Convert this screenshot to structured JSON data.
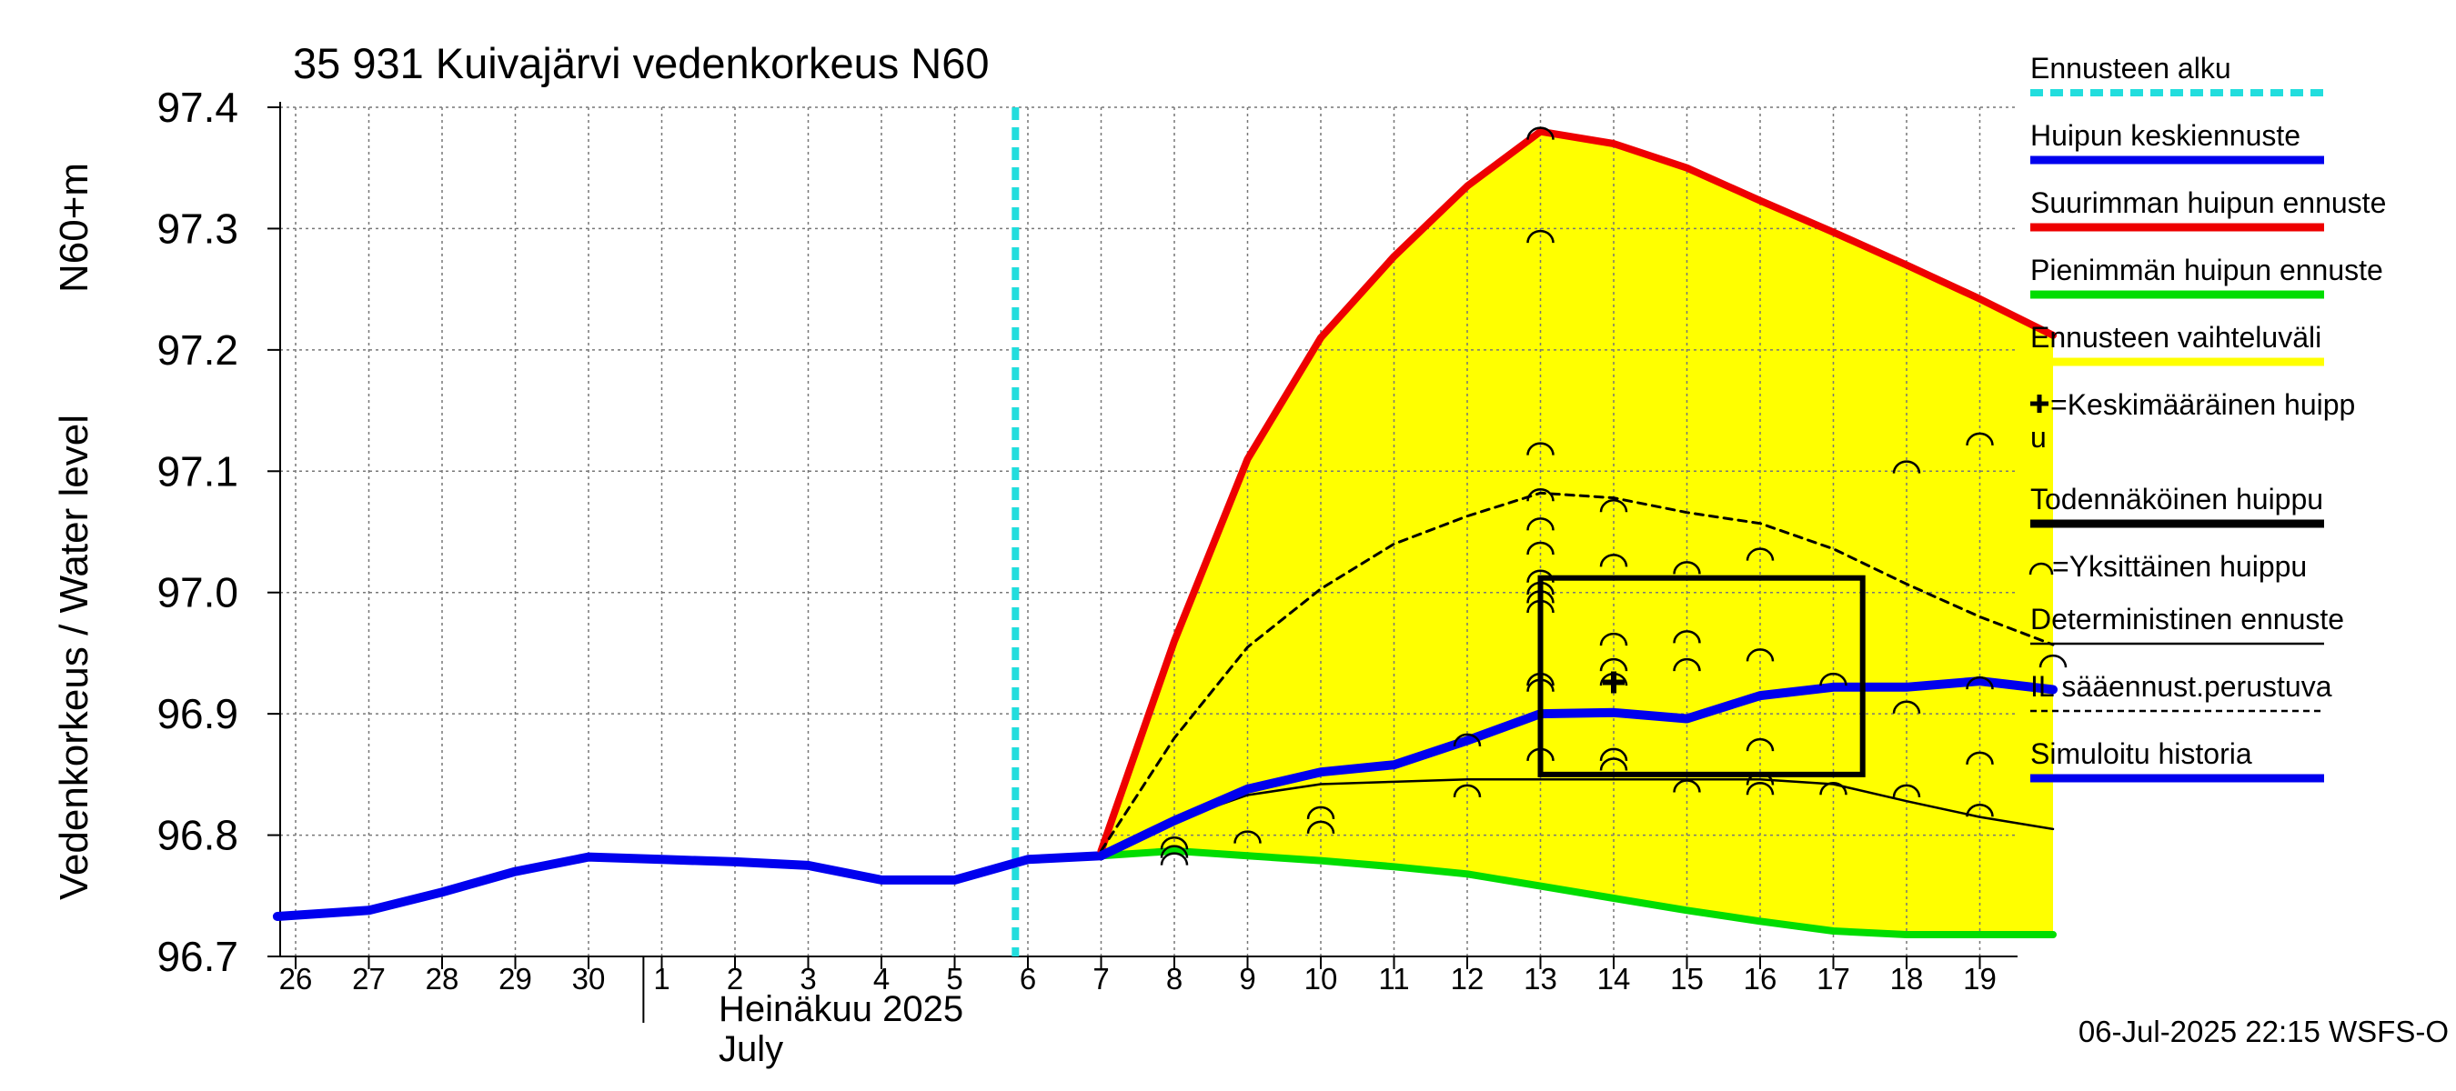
{
  "chart_data": {
    "type": "line",
    "title": "35 931 Kuivajärvi vedenkorkeus N60",
    "ylabel": "Vedenkorkeus / Water level",
    "ylabel_unit": "N60+m",
    "xlabel_month_fi": "Heinäkuu  2025",
    "xlabel_month_en": "July",
    "timestamp": "06-Jul-2025 22:15 WSFS-O",
    "ylim": [
      96.7,
      97.4
    ],
    "yticks": [
      "96.7",
      "96.8",
      "96.9",
      "97.0",
      "97.1",
      "97.2",
      "97.3",
      "97.4"
    ],
    "xlim": [
      -0.25,
      24.0
    ],
    "xticks": [
      {
        "x": 0,
        "label": "26"
      },
      {
        "x": 1,
        "label": "27"
      },
      {
        "x": 2,
        "label": "28"
      },
      {
        "x": 3,
        "label": "29"
      },
      {
        "x": 4,
        "label": "30"
      },
      {
        "x": 5,
        "label": "1"
      },
      {
        "x": 6,
        "label": "2"
      },
      {
        "x": 7,
        "label": "3"
      },
      {
        "x": 8,
        "label": "4"
      },
      {
        "x": 9,
        "label": "5"
      },
      {
        "x": 10,
        "label": "6"
      },
      {
        "x": 11,
        "label": "7"
      },
      {
        "x": 12,
        "label": "8"
      },
      {
        "x": 13,
        "label": "9"
      },
      {
        "x": 14,
        "label": "10"
      },
      {
        "x": 15,
        "label": "11"
      },
      {
        "x": 16,
        "label": "12"
      },
      {
        "x": 17,
        "label": "13"
      },
      {
        "x": 18,
        "label": "14"
      },
      {
        "x": 19,
        "label": "15"
      },
      {
        "x": 20,
        "label": "16"
      },
      {
        "x": 21,
        "label": "17"
      },
      {
        "x": 22,
        "label": "18"
      },
      {
        "x": 23,
        "label": "19"
      }
    ],
    "month_boundary_x": 4.75,
    "forecast_start_x": 9.83,
    "grid": true,
    "legend": {
      "placement": "right",
      "items": [
        {
          "label": "Ennusteen alku",
          "color": "#22dddd",
          "style": "dashed"
        },
        {
          "label": "Huipun keskiennuste",
          "color": "#0000ee",
          "style": "solid"
        },
        {
          "label": "Suurimman huipun ennuste",
          "color": "#ee0000",
          "style": "solid"
        },
        {
          "label": "Pienimmän huipun ennuste",
          "color": "#00dd00",
          "style": "solid"
        },
        {
          "label": "Ennusteen vaihteluväli",
          "color": "#ffff00",
          "style": "solid"
        },
        {
          "label": "=Keskimääräinen huipp",
          "label2": "u",
          "color": "#000000",
          "style": "plus"
        },
        {
          "label": "Todennäköinen huippu",
          "color": "#000000",
          "style": "solid"
        },
        {
          "label": "=Yksittäinen huippu",
          "color": "#000000",
          "style": "arc"
        },
        {
          "label": "Deterministinen ennuste",
          "color": "#000000",
          "style": "thin"
        },
        {
          "label": "IL sääennust.perustuva",
          "color": "#000000",
          "style": "dotted"
        },
        {
          "label": "Simuloitu historia",
          "color": "#0000ee",
          "style": "solid"
        }
      ]
    },
    "series": [
      {
        "name": "Simuloitu historia",
        "color": "#0000ee",
        "x": [
          -0.25,
          1,
          2,
          3,
          4,
          5,
          6,
          7,
          8,
          9,
          10,
          11
        ],
        "y": [
          96.733,
          96.738,
          96.753,
          96.77,
          96.782,
          96.78,
          96.778,
          96.775,
          96.763,
          96.763,
          96.78,
          96.783
        ]
      },
      {
        "name": "Huipun keskiennuste",
        "color": "#0000ee",
        "x": [
          11,
          12,
          13,
          14,
          15,
          16,
          17,
          18,
          19,
          20,
          21,
          22,
          23,
          24
        ],
        "y": [
          96.783,
          96.812,
          96.838,
          96.852,
          96.858,
          96.878,
          96.9,
          96.901,
          96.896,
          96.915,
          96.922,
          96.922,
          96.927,
          96.92
        ]
      },
      {
        "name": "Suurimman huipun ennuste",
        "color": "#ee0000",
        "x": [
          11,
          12,
          13,
          14,
          15,
          16,
          17,
          18,
          19,
          20,
          21,
          22,
          23,
          24
        ],
        "y": [
          96.787,
          96.96,
          97.11,
          97.21,
          97.277,
          97.335,
          97.38,
          97.37,
          97.35,
          97.323,
          97.297,
          97.27,
          97.242,
          97.212
        ]
      },
      {
        "name": "Pienimmän huipun ennuste",
        "color": "#00dd00",
        "x": [
          11,
          12,
          13,
          14,
          15,
          16,
          17,
          18,
          19,
          20,
          21,
          22,
          23,
          24
        ],
        "y": [
          96.783,
          96.787,
          96.783,
          96.779,
          96.774,
          96.768,
          96.758,
          96.748,
          96.738,
          96.729,
          96.721,
          96.718,
          96.718,
          96.718
        ]
      },
      {
        "name": "IL sääennust.perustuva",
        "color": "#000000",
        "x": [
          11,
          12,
          13,
          14,
          15,
          16,
          17,
          18,
          19,
          20,
          21,
          22,
          23,
          24
        ],
        "y": [
          96.787,
          96.88,
          96.955,
          97.003,
          97.04,
          97.063,
          97.082,
          97.078,
          97.066,
          97.057,
          97.036,
          97.007,
          96.98,
          96.957
        ]
      },
      {
        "name": "Deterministinen ennuste",
        "color": "#000000",
        "x": [
          11,
          12,
          13,
          14,
          15,
          16,
          17,
          18,
          19,
          20,
          21,
          22,
          23,
          24
        ],
        "y": [
          96.783,
          96.812,
          96.833,
          96.842,
          96.844,
          96.846,
          96.846,
          96.846,
          96.846,
          96.846,
          96.842,
          96.828,
          96.815,
          96.805
        ]
      }
    ],
    "likely_peak_box": {
      "x0": 17,
      "x1": 21.4,
      "y0": 96.85,
      "y1": 97.012
    },
    "mean_peak": {
      "x": 18,
      "y": 96.926
    },
    "individual_peaks": [
      {
        "x": 12,
        "y": 96.795
      },
      {
        "x": 12,
        "y": 96.788
      },
      {
        "x": 12,
        "y": 96.782
      },
      {
        "x": 13,
        "y": 96.8
      },
      {
        "x": 14,
        "y": 96.82
      },
      {
        "x": 14,
        "y": 96.808
      },
      {
        "x": 16,
        "y": 96.838
      },
      {
        "x": 16,
        "y": 96.88
      },
      {
        "x": 17,
        "y": 97.38
      },
      {
        "x": 17,
        "y": 97.295
      },
      {
        "x": 17,
        "y": 97.12
      },
      {
        "x": 17,
        "y": 97.082
      },
      {
        "x": 17,
        "y": 97.058
      },
      {
        "x": 17,
        "y": 97.038
      },
      {
        "x": 17,
        "y": 97.015
      },
      {
        "x": 17,
        "y": 97.005
      },
      {
        "x": 17,
        "y": 96.998
      },
      {
        "x": 17,
        "y": 96.99
      },
      {
        "x": 17,
        "y": 96.93
      },
      {
        "x": 17,
        "y": 96.925
      },
      {
        "x": 17,
        "y": 96.868
      },
      {
        "x": 18,
        "y": 97.073
      },
      {
        "x": 18,
        "y": 97.028
      },
      {
        "x": 18,
        "y": 96.963
      },
      {
        "x": 18,
        "y": 96.942
      },
      {
        "x": 18,
        "y": 96.93
      },
      {
        "x": 18,
        "y": 96.868
      },
      {
        "x": 18,
        "y": 96.86
      },
      {
        "x": 19,
        "y": 97.022
      },
      {
        "x": 19,
        "y": 96.965
      },
      {
        "x": 19,
        "y": 96.942
      },
      {
        "x": 19,
        "y": 96.842
      },
      {
        "x": 20,
        "y": 97.033
      },
      {
        "x": 20,
        "y": 96.95
      },
      {
        "x": 20,
        "y": 96.876
      },
      {
        "x": 20,
        "y": 96.848
      },
      {
        "x": 20,
        "y": 96.84
      },
      {
        "x": 21,
        "y": 96.93
      },
      {
        "x": 21,
        "y": 96.84
      },
      {
        "x": 22,
        "y": 97.105
      },
      {
        "x": 22,
        "y": 96.907
      },
      {
        "x": 22,
        "y": 96.838
      },
      {
        "x": 23,
        "y": 97.128
      },
      {
        "x": 23,
        "y": 96.927
      },
      {
        "x": 23,
        "y": 96.865
      },
      {
        "x": 23,
        "y": 96.822
      },
      {
        "x": 24,
        "y": 96.945
      }
    ]
  }
}
